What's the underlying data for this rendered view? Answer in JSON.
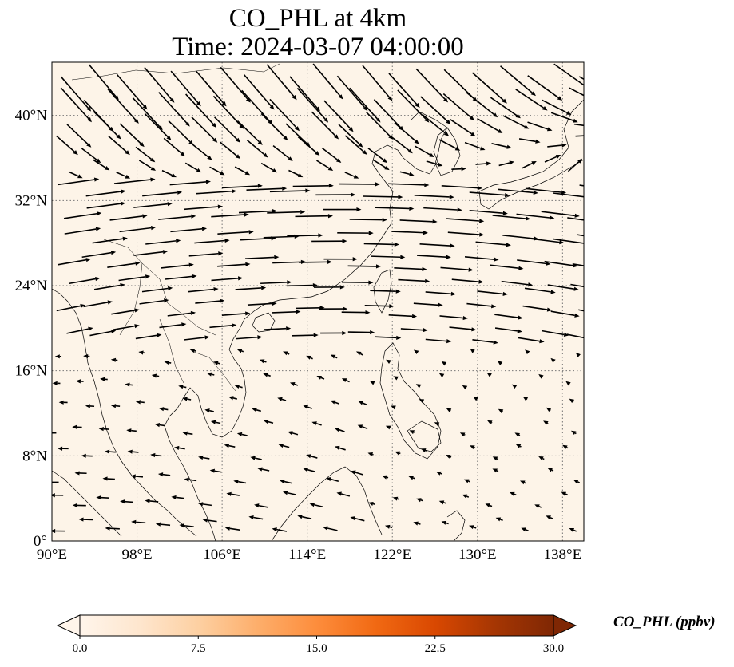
{
  "title": {
    "line1": "CO_PHL at 4km",
    "line2": "Time: 2024-03-07 04:00:00"
  },
  "chart_data": {
    "type": "vector-field-map",
    "variable": "CO_PHL",
    "level": "4km",
    "time": "2024-03-07 04:00:00",
    "lon_range": [
      90,
      140
    ],
    "lat_range": [
      0,
      45
    ],
    "xticks": [
      {
        "value": 90,
        "label": "90°E"
      },
      {
        "value": 98,
        "label": "98°E"
      },
      {
        "value": 106,
        "label": "106°E"
      },
      {
        "value": 114,
        "label": "114°E"
      },
      {
        "value": 122,
        "label": "122°E"
      },
      {
        "value": 130,
        "label": "130°E"
      },
      {
        "value": 138,
        "label": "138°E"
      }
    ],
    "yticks": [
      {
        "value": 0,
        "label": "0°"
      },
      {
        "value": 8,
        "label": "8°N"
      },
      {
        "value": 16,
        "label": "16°N"
      },
      {
        "value": 24,
        "label": "24°N"
      },
      {
        "value": 32,
        "label": "32°N"
      },
      {
        "value": 40,
        "label": "40°N"
      }
    ],
    "gridlines": true,
    "field_fill": "#fdf4e8",
    "colorbar": {
      "label": "CO_PHL (ppbv)",
      "min": 0.0,
      "max": 30.0,
      "extend": "both",
      "ticks": [
        {
          "value": 0.0,
          "label": "0.0"
        },
        {
          "value": 7.5,
          "label": "7.5"
        },
        {
          "value": 15.0,
          "label": "15.0"
        },
        {
          "value": 22.5,
          "label": "22.5"
        },
        {
          "value": 30.0,
          "label": "30.0"
        }
      ],
      "colors": [
        "#fff5eb",
        "#fee6ce",
        "#fdd0a2",
        "#fdae6b",
        "#fd8d3c",
        "#f16913",
        "#d94801",
        "#a63603",
        "#7f2704"
      ]
    }
  }
}
